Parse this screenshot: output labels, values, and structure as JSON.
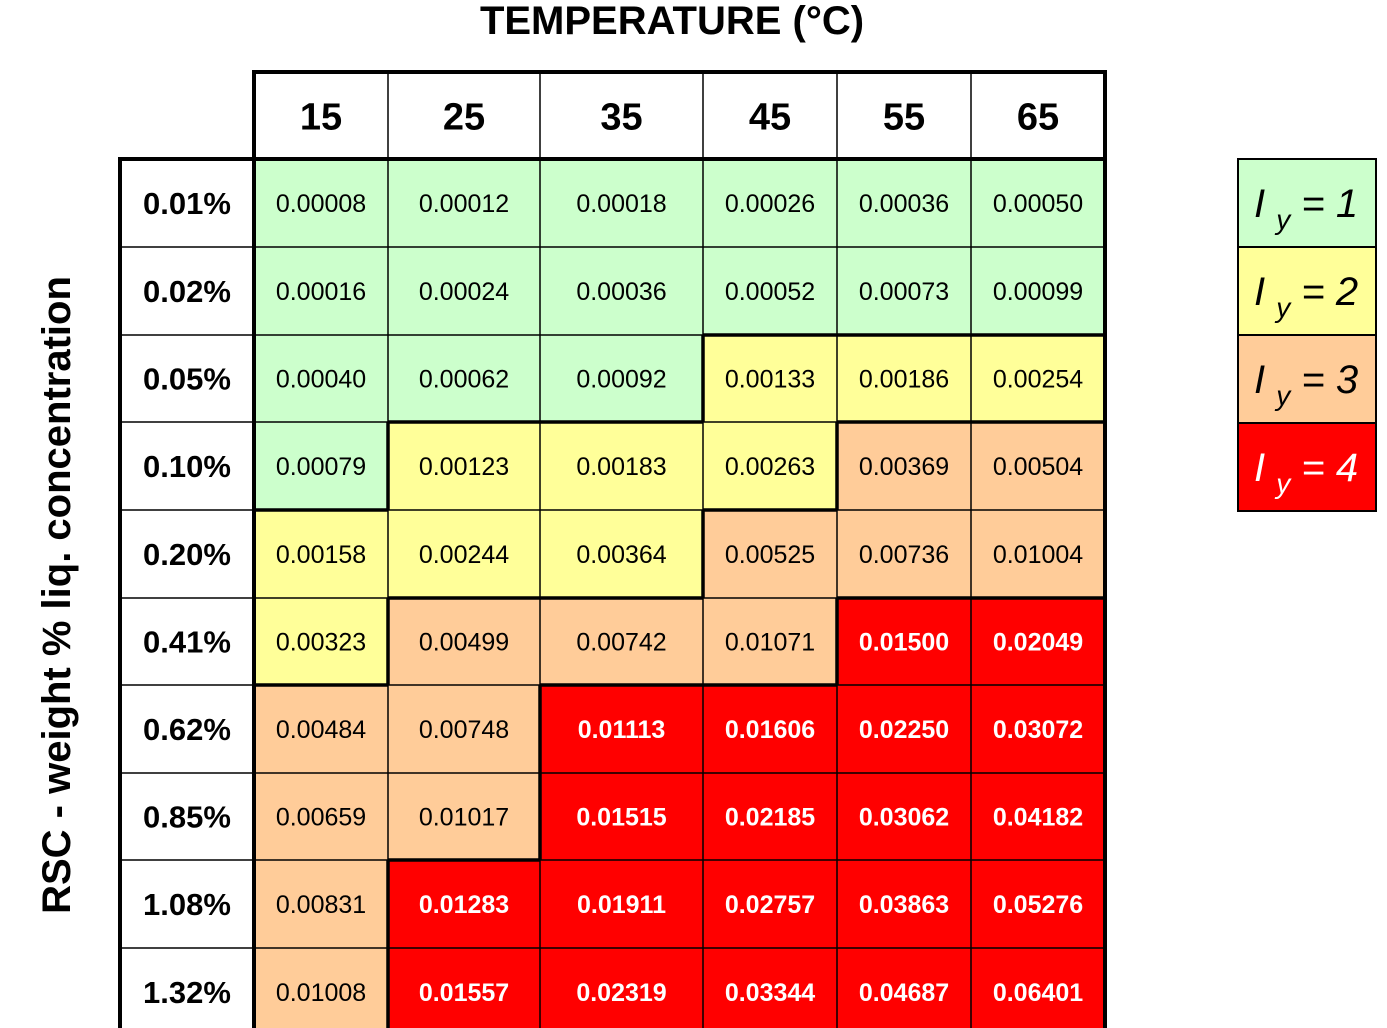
{
  "chart_data": {
    "type": "heatmap",
    "title": "TEMPERATURE (°C)",
    "ylabel": "RSC - weight % liq. concentration",
    "columns": [
      "15",
      "25",
      "35",
      "45",
      "55",
      "65"
    ],
    "rows": [
      "0.01%",
      "0.02%",
      "0.05%",
      "0.10%",
      "0.20%",
      "0.41%",
      "0.62%",
      "0.85%",
      "1.08%",
      "1.32%"
    ],
    "values": [
      [
        "0.00008",
        "0.00012",
        "0.00018",
        "0.00026",
        "0.00036",
        "0.00050"
      ],
      [
        "0.00016",
        "0.00024",
        "0.00036",
        "0.00052",
        "0.00073",
        "0.00099"
      ],
      [
        "0.00040",
        "0.00062",
        "0.00092",
        "0.00133",
        "0.00186",
        "0.00254"
      ],
      [
        "0.00079",
        "0.00123",
        "0.00183",
        "0.00263",
        "0.00369",
        "0.00504"
      ],
      [
        "0.00158",
        "0.00244",
        "0.00364",
        "0.00525",
        "0.00736",
        "0.01004"
      ],
      [
        "0.00323",
        "0.00499",
        "0.00742",
        "0.01071",
        "0.01500",
        "0.02049"
      ],
      [
        "0.00484",
        "0.00748",
        "0.01113",
        "0.01606",
        "0.02250",
        "0.03072"
      ],
      [
        "0.00659",
        "0.01017",
        "0.01515",
        "0.02185",
        "0.03062",
        "0.04182"
      ],
      [
        "0.00831",
        "0.01283",
        "0.01911",
        "0.02757",
        "0.03863",
        "0.05276"
      ],
      [
        "0.01008",
        "0.01557",
        "0.02319",
        "0.03344",
        "0.04687",
        "0.06401"
      ]
    ],
    "classes": [
      [
        1,
        1,
        1,
        1,
        1,
        1
      ],
      [
        1,
        1,
        1,
        1,
        1,
        1
      ],
      [
        1,
        1,
        1,
        2,
        2,
        2
      ],
      [
        1,
        2,
        2,
        2,
        3,
        3
      ],
      [
        2,
        2,
        2,
        3,
        3,
        3
      ],
      [
        2,
        3,
        3,
        3,
        4,
        4
      ],
      [
        3,
        3,
        4,
        4,
        4,
        4
      ],
      [
        3,
        3,
        4,
        4,
        4,
        4
      ],
      [
        3,
        4,
        4,
        4,
        4,
        4
      ],
      [
        3,
        4,
        4,
        4,
        4,
        4
      ]
    ],
    "legend": {
      "position": "right",
      "symbol": "I",
      "subscript": "y",
      "items": [
        {
          "value": "1",
          "color": "#ccffcc"
        },
        {
          "value": "2",
          "color": "#ffff99"
        },
        {
          "value": "3",
          "color": "#ffcc99"
        },
        {
          "value": "4",
          "color": "#ff0000"
        }
      ]
    },
    "value_text_colors": {
      "1": "#000000",
      "2": "#000000",
      "3": "#000000",
      "4": "#ffffff"
    }
  }
}
